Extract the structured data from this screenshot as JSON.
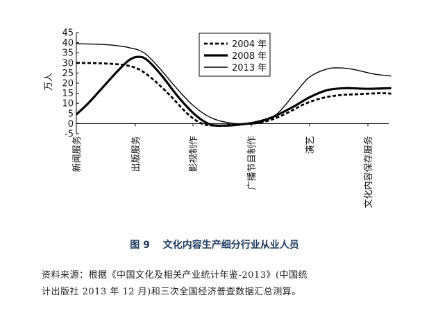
{
  "chart_data": {
    "type": "line",
    "ylabel": "万人",
    "ylim": [
      -5,
      45
    ],
    "yticks": [
      -5,
      0,
      5,
      10,
      15,
      20,
      25,
      30,
      35,
      40,
      45
    ],
    "categories": [
      "新闻服务",
      "出版服务",
      "影视制作",
      "广播节目制作",
      "演艺",
      "文化内容保存服务"
    ],
    "legend_position": "top-center",
    "grid": false,
    "series": [
      {
        "name": "2004 年",
        "style": "dashed",
        "color": "#000000",
        "points": [
          [
            0,
            30
          ],
          [
            0.4,
            29.8
          ],
          [
            0.8,
            29
          ],
          [
            1.05,
            27
          ],
          [
            1.3,
            22
          ],
          [
            1.6,
            14
          ],
          [
            1.9,
            5
          ],
          [
            2.15,
            0
          ],
          [
            2.4,
            -1
          ],
          [
            2.7,
            -0.5
          ],
          [
            3.0,
            0
          ],
          [
            3.3,
            1.5
          ],
          [
            3.6,
            5
          ],
          [
            3.9,
            9.5
          ],
          [
            4.2,
            12.5
          ],
          [
            4.5,
            14
          ],
          [
            4.8,
            14.5
          ],
          [
            5.2,
            15
          ],
          [
            5.4,
            14.8
          ]
        ]
      },
      {
        "name": "2008 年",
        "style": "solid-thick",
        "color": "#000000",
        "points": [
          [
            0,
            4.5
          ],
          [
            0.2,
            10
          ],
          [
            0.45,
            18
          ],
          [
            0.7,
            26
          ],
          [
            0.9,
            31.5
          ],
          [
            1.05,
            33
          ],
          [
            1.2,
            31.5
          ],
          [
            1.45,
            24
          ],
          [
            1.75,
            13
          ],
          [
            2.05,
            4
          ],
          [
            2.3,
            -0.5
          ],
          [
            2.55,
            -1
          ],
          [
            2.8,
            -0.5
          ],
          [
            3.05,
            0.5
          ],
          [
            3.35,
            3
          ],
          [
            3.7,
            8
          ],
          [
            4.0,
            13
          ],
          [
            4.3,
            16.5
          ],
          [
            4.6,
            17.5
          ],
          [
            5.0,
            17.2
          ],
          [
            5.4,
            17.5
          ]
        ]
      },
      {
        "name": "2013 年",
        "style": "solid-thin",
        "color": "#000000",
        "points": [
          [
            0,
            39.5
          ],
          [
            0.3,
            39.3
          ],
          [
            0.6,
            38.8
          ],
          [
            0.9,
            37.5
          ],
          [
            1.15,
            35
          ],
          [
            1.4,
            28
          ],
          [
            1.7,
            18
          ],
          [
            2.0,
            9
          ],
          [
            2.3,
            3
          ],
          [
            2.6,
            0.5
          ],
          [
            2.9,
            -0.3
          ],
          [
            3.15,
            0.5
          ],
          [
            3.45,
            5
          ],
          [
            3.75,
            15
          ],
          [
            4.0,
            23
          ],
          [
            4.3,
            27
          ],
          [
            4.55,
            27.5
          ],
          [
            4.8,
            26.5
          ],
          [
            5.1,
            24.5
          ],
          [
            5.4,
            23.5
          ]
        ]
      }
    ]
  },
  "caption": {
    "fig_num": "图 9",
    "title": "文化内容生产细分行业从业人员"
  },
  "source_note": {
    "line1": "资料来源：根据《中国文化及相关产业统计年鉴-2013》(中国统",
    "line2": "计出版社 2013 年 12 月)和三次全国经济普查数据汇总测算。"
  }
}
